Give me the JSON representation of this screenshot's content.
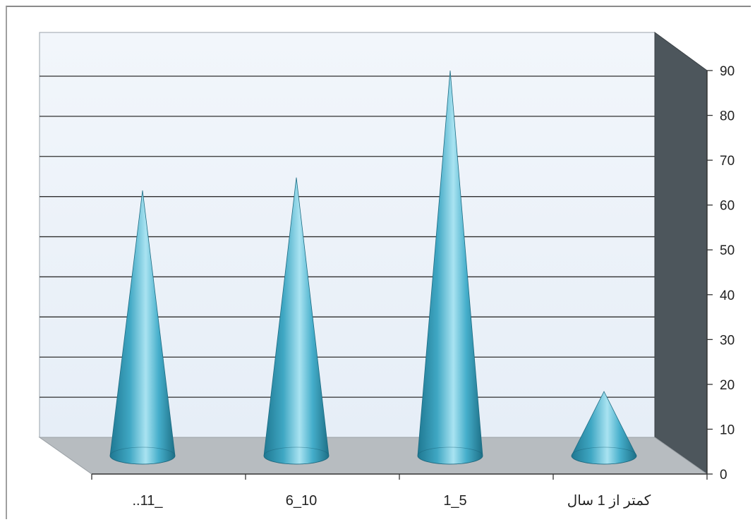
{
  "chart_data": {
    "type": "bar",
    "style": "3d-cone",
    "categories": [
      "..11_",
      "6_10",
      "1_5",
      "کمتر از 1 سال"
    ],
    "values": [
      62,
      65,
      90,
      15
    ],
    "ylim": [
      0,
      90
    ],
    "yticks": [
      0,
      10,
      20,
      30,
      40,
      50,
      60,
      70,
      80,
      90
    ],
    "grid": true,
    "legend": "none",
    "colors": {
      "cone": "#3fa7c3",
      "cone_highlight": "#a9e3f1",
      "cone_shadow": "#1d6f86",
      "back_wall": "#eef4fb",
      "side_wall": "#4d565c",
      "floor": "#b7bcc0",
      "gridline": "#2f2f2f"
    }
  }
}
